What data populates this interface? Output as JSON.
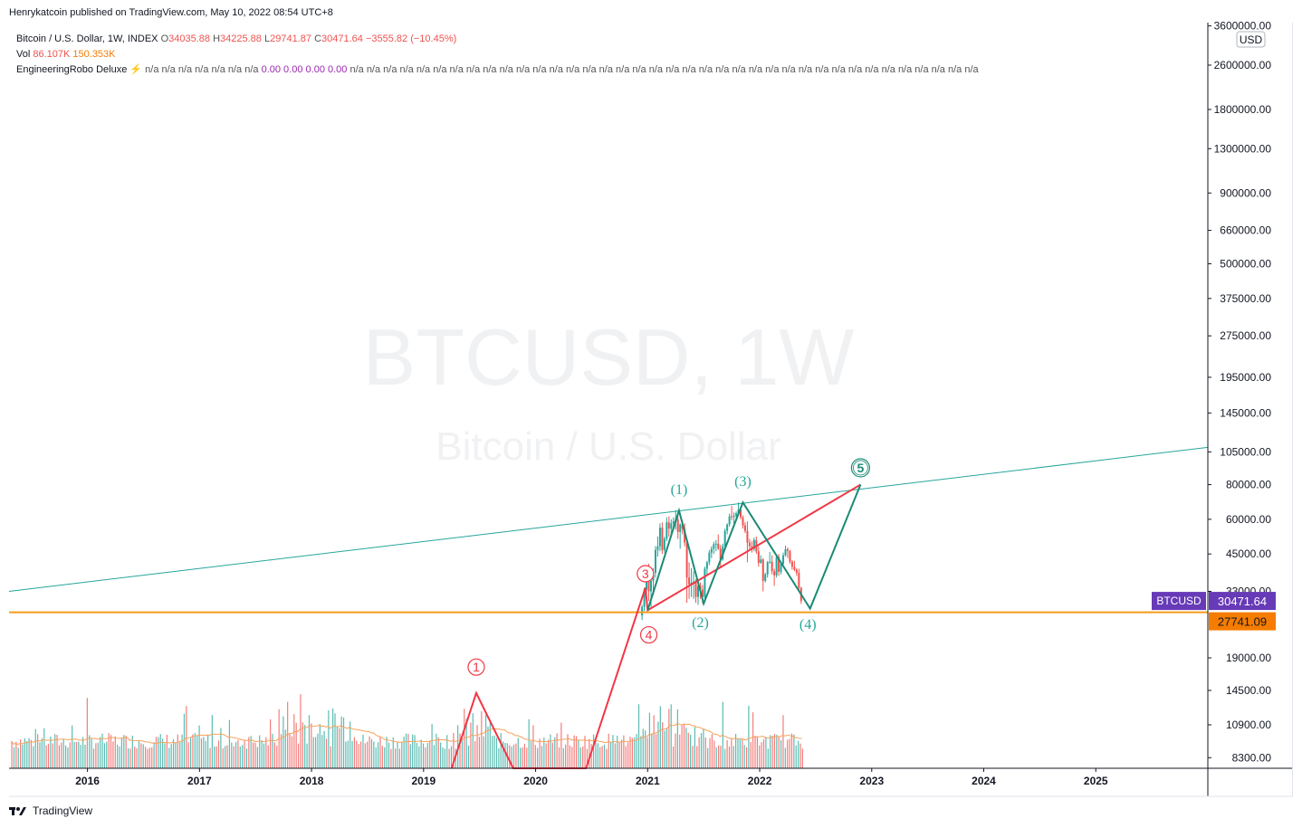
{
  "header": {
    "published": "Henrykatcoin published on TradingView.com, May 10, 2022 08:54 UTC+8"
  },
  "legend": {
    "symbol_line": "Bitcoin / U.S. Dollar, 1W, INDEX",
    "open_label": "O",
    "open": "34035.88",
    "high_label": "H",
    "high": "34225.88",
    "low_label": "L",
    "low": "29741.87",
    "close_label": "C",
    "close": "30471.64",
    "change": "−3555.82 (−10.45%)",
    "vol_label": "Vol",
    "vol_value": "86.107K",
    "vol_ma": "150.353K",
    "indicator_name": "EngineeringRobo Deluxe",
    "indicator_values": "n/a  n/a  n/a  n/a  n/a  n/a  n/a",
    "indicator_zeros": "0.00  0.00  0.00  0.00",
    "indicator_values2": "n/a  n/a  n/a  n/a  n/a  n/a  n/a  n/a  n/a  n/a  n/a  n/a  n/a  n/a  n/a  n/a  n/a  n/a  n/a  n/a  n/a  n/a  n/a  n/a  n/a  n/a  n/a  n/a  n/a  n/a  n/a  n/a  n/a  n/a  n/a  n/a  n/a  n/a"
  },
  "watermark": {
    "line1": "BTCUSD, 1W",
    "line2": "Bitcoin / U.S. Dollar"
  },
  "currency_button": "USD",
  "footer": {
    "brand": "TradingView"
  },
  "colors": {
    "up": "#26a69a",
    "down": "#ef5350",
    "trendline": "#26a69a",
    "support": "#f59c1a",
    "wave_red": "#f23645",
    "wave_green": "#1b8a74",
    "symbol_badge": "#673ab7",
    "price_badge_support": "#f57c00"
  },
  "chart_data": {
    "type": "candlestick",
    "title": "Bitcoin / U.S. Dollar, 1W, INDEX",
    "y_scale": "log",
    "ylim": [
      7600,
      3700000
    ],
    "xlim": [
      2015.3,
      2026.0
    ],
    "x_ticks": [
      {
        "x": 2016,
        "label": "2016"
      },
      {
        "x": 2017,
        "label": "2017"
      },
      {
        "x": 2018,
        "label": "2018"
      },
      {
        "x": 2019,
        "label": "2019"
      },
      {
        "x": 2020,
        "label": "2020"
      },
      {
        "x": 2021,
        "label": "2021"
      },
      {
        "x": 2022,
        "label": "2022"
      },
      {
        "x": 2023,
        "label": "2023"
      },
      {
        "x": 2024,
        "label": "2024"
      },
      {
        "x": 2025,
        "label": "2025"
      }
    ],
    "y_ticks": [
      {
        "v": 3600000,
        "label": "3600000.00"
      },
      {
        "v": 2600000,
        "label": "2600000.00"
      },
      {
        "v": 1800000,
        "label": "1800000.00"
      },
      {
        "v": 1300000,
        "label": "1300000.00"
      },
      {
        "v": 900000,
        "label": "900000.00"
      },
      {
        "v": 660000,
        "label": "660000.00"
      },
      {
        "v": 500000,
        "label": "500000.00"
      },
      {
        "v": 375000,
        "label": "375000.00"
      },
      {
        "v": 275000,
        "label": "275000.00"
      },
      {
        "v": 195000,
        "label": "195000.00"
      },
      {
        "v": 145000,
        "label": "145000.00"
      },
      {
        "v": 105000,
        "label": "105000.00"
      },
      {
        "v": 80000,
        "label": "80000.00"
      },
      {
        "v": 60000,
        "label": "60000.00"
      },
      {
        "v": 45000,
        "label": "45000.00"
      },
      {
        "v": 33000,
        "label": "33000.00"
      },
      {
        "v": 19000,
        "label": "19000.00"
      },
      {
        "v": 14500,
        "label": "14500.00"
      },
      {
        "v": 10900,
        "label": "10900.00"
      },
      {
        "v": 8300,
        "label": "8300.00"
      }
    ],
    "price_labels": [
      {
        "name": "BTCUSD",
        "value": 30471.64,
        "label": "30471.64"
      },
      {
        "name": "support",
        "value": 27741.09,
        "label": "27741.09"
      }
    ],
    "support_level": 27741.09,
    "trendline": {
      "x": [
        2015.3,
        2026.0
      ],
      "y": [
        33000,
        109000
      ]
    },
    "red_wave_path": {
      "x": [
        2019.25,
        2019.47,
        2019.8,
        2020.45,
        2020.98,
        2021.0,
        2022.9
      ],
      "y": [
        7200,
        14200,
        7200,
        7200,
        34000,
        28200,
        80000
      ]
    },
    "green_wave_path": {
      "x": [
        2021.0,
        2021.28,
        2021.5,
        2021.85,
        2022.45,
        2022.9
      ],
      "y": [
        28200,
        64500,
        29800,
        69000,
        28600,
        80000
      ]
    },
    "wave_labels": [
      {
        "text": "1",
        "style": "red-circle",
        "x": 2019.47,
        "y": 17600
      },
      {
        "text": "3",
        "style": "red-circle",
        "x": 2020.98,
        "y": 38200
      },
      {
        "text": "4",
        "style": "red-circle",
        "x": 2021.01,
        "y": 23000
      },
      {
        "text": "5",
        "style": "green-circle",
        "x": 2022.9,
        "y": 92000
      },
      {
        "text": "(1)",
        "style": "green-paren",
        "x": 2021.28,
        "y": 74000
      },
      {
        "text": "(2)",
        "style": "green-paren",
        "x": 2021.47,
        "y": 24500
      },
      {
        "text": "(3)",
        "style": "green-paren",
        "x": 2021.85,
        "y": 79000
      },
      {
        "text": "(4)",
        "style": "green-paren",
        "x": 2022.43,
        "y": 24200
      }
    ],
    "candles": [
      {
        "x": 2020.95,
        "o": 27000,
        "h": 29500,
        "l": 26000,
        "c": 29000
      },
      {
        "x": 2020.97,
        "o": 29000,
        "h": 34000,
        "l": 28000,
        "c": 33500
      },
      {
        "x": 2020.99,
        "o": 33500,
        "h": 41000,
        "l": 30000,
        "c": 39000
      },
      {
        "x": 2021.01,
        "o": 39000,
        "h": 41500,
        "l": 30500,
        "c": 33000
      },
      {
        "x": 2021.03,
        "o": 33000,
        "h": 38000,
        "l": 29000,
        "c": 36000
      },
      {
        "x": 2021.05,
        "o": 36000,
        "h": 40000,
        "l": 32000,
        "c": 38500
      },
      {
        "x": 2021.07,
        "o": 38500,
        "h": 48000,
        "l": 37000,
        "c": 46500
      },
      {
        "x": 2021.09,
        "o": 46500,
        "h": 52000,
        "l": 44000,
        "c": 48000
      },
      {
        "x": 2021.11,
        "o": 48000,
        "h": 58000,
        "l": 46000,
        "c": 56000
      },
      {
        "x": 2021.13,
        "o": 56000,
        "h": 58500,
        "l": 45000,
        "c": 46500
      },
      {
        "x": 2021.15,
        "o": 46500,
        "h": 52000,
        "l": 45500,
        "c": 51000
      },
      {
        "x": 2021.17,
        "o": 51000,
        "h": 61000,
        "l": 50000,
        "c": 58500
      },
      {
        "x": 2021.19,
        "o": 58500,
        "h": 61500,
        "l": 52000,
        "c": 55500
      },
      {
        "x": 2021.21,
        "o": 55500,
        "h": 60000,
        "l": 53000,
        "c": 58000
      },
      {
        "x": 2021.23,
        "o": 58000,
        "h": 61000,
        "l": 56000,
        "c": 59000
      },
      {
        "x": 2021.25,
        "o": 59000,
        "h": 64800,
        "l": 55000,
        "c": 60000
      },
      {
        "x": 2021.27,
        "o": 60000,
        "h": 64000,
        "l": 51000,
        "c": 54000
      },
      {
        "x": 2021.29,
        "o": 54000,
        "h": 58000,
        "l": 47000,
        "c": 57500
      },
      {
        "x": 2021.31,
        "o": 57500,
        "h": 59500,
        "l": 53000,
        "c": 55500
      },
      {
        "x": 2021.33,
        "o": 55500,
        "h": 58000,
        "l": 48000,
        "c": 49500
      },
      {
        "x": 2021.35,
        "o": 49500,
        "h": 51000,
        "l": 30000,
        "c": 37000
      },
      {
        "x": 2021.37,
        "o": 37000,
        "h": 42000,
        "l": 31000,
        "c": 35000
      },
      {
        "x": 2021.39,
        "o": 35000,
        "h": 40000,
        "l": 31500,
        "c": 35500
      },
      {
        "x": 2021.41,
        "o": 35500,
        "h": 39000,
        "l": 31000,
        "c": 35800
      },
      {
        "x": 2021.43,
        "o": 35800,
        "h": 36500,
        "l": 30000,
        "c": 31500
      },
      {
        "x": 2021.45,
        "o": 31500,
        "h": 35500,
        "l": 29500,
        "c": 34500
      },
      {
        "x": 2021.47,
        "o": 34500,
        "h": 35500,
        "l": 31000,
        "c": 33500
      },
      {
        "x": 2021.49,
        "o": 33500,
        "h": 34800,
        "l": 29800,
        "c": 31500
      },
      {
        "x": 2021.51,
        "o": 31500,
        "h": 40500,
        "l": 31000,
        "c": 39800
      },
      {
        "x": 2021.53,
        "o": 39800,
        "h": 42500,
        "l": 37500,
        "c": 42000
      },
      {
        "x": 2021.55,
        "o": 42000,
        "h": 46500,
        "l": 41000,
        "c": 45500
      },
      {
        "x": 2021.57,
        "o": 45500,
        "h": 48000,
        "l": 43500,
        "c": 47000
      },
      {
        "x": 2021.59,
        "o": 47000,
        "h": 49800,
        "l": 45000,
        "c": 48800
      },
      {
        "x": 2021.61,
        "o": 48800,
        "h": 50500,
        "l": 46000,
        "c": 49000
      },
      {
        "x": 2021.63,
        "o": 49000,
        "h": 52900,
        "l": 46500,
        "c": 47000
      },
      {
        "x": 2021.65,
        "o": 47000,
        "h": 48500,
        "l": 40000,
        "c": 43000
      },
      {
        "x": 2021.67,
        "o": 43000,
        "h": 49000,
        "l": 42500,
        "c": 48000
      },
      {
        "x": 2021.69,
        "o": 48000,
        "h": 55500,
        "l": 47500,
        "c": 54500
      },
      {
        "x": 2021.71,
        "o": 54500,
        "h": 58000,
        "l": 53000,
        "c": 57500
      },
      {
        "x": 2021.73,
        "o": 57500,
        "h": 62900,
        "l": 56500,
        "c": 61500
      },
      {
        "x": 2021.75,
        "o": 61500,
        "h": 67000,
        "l": 59500,
        "c": 61200
      },
      {
        "x": 2021.77,
        "o": 61200,
        "h": 63500,
        "l": 58000,
        "c": 61800
      },
      {
        "x": 2021.79,
        "o": 61800,
        "h": 64000,
        "l": 60000,
        "c": 63000
      },
      {
        "x": 2021.81,
        "o": 63000,
        "h": 69000,
        "l": 62000,
        "c": 65000
      },
      {
        "x": 2021.83,
        "o": 65000,
        "h": 66000,
        "l": 60000,
        "c": 61000
      },
      {
        "x": 2021.85,
        "o": 61000,
        "h": 62000,
        "l": 55500,
        "c": 57000
      },
      {
        "x": 2021.87,
        "o": 57000,
        "h": 58500,
        "l": 53500,
        "c": 54500
      },
      {
        "x": 2021.89,
        "o": 54500,
        "h": 59000,
        "l": 42000,
        "c": 49500
      },
      {
        "x": 2021.91,
        "o": 49500,
        "h": 51000,
        "l": 46500,
        "c": 48000
      },
      {
        "x": 2021.93,
        "o": 48000,
        "h": 50000,
        "l": 45500,
        "c": 47000
      },
      {
        "x": 2021.95,
        "o": 47000,
        "h": 51500,
        "l": 46000,
        "c": 50500
      },
      {
        "x": 2021.97,
        "o": 50500,
        "h": 52000,
        "l": 45000,
        "c": 46000
      },
      {
        "x": 2021.99,
        "o": 46000,
        "h": 48000,
        "l": 40500,
        "c": 41800
      },
      {
        "x": 2022.01,
        "o": 41800,
        "h": 44500,
        "l": 41500,
        "c": 43000
      },
      {
        "x": 2022.03,
        "o": 43000,
        "h": 43500,
        "l": 33000,
        "c": 36000
      },
      {
        "x": 2022.05,
        "o": 36000,
        "h": 38500,
        "l": 35500,
        "c": 38000
      },
      {
        "x": 2022.07,
        "o": 38000,
        "h": 42500,
        "l": 37000,
        "c": 42000
      },
      {
        "x": 2022.09,
        "o": 42000,
        "h": 45800,
        "l": 41500,
        "c": 42200
      },
      {
        "x": 2022.11,
        "o": 42200,
        "h": 44500,
        "l": 38000,
        "c": 39000
      },
      {
        "x": 2022.13,
        "o": 39000,
        "h": 39800,
        "l": 34500,
        "c": 37700
      },
      {
        "x": 2022.15,
        "o": 37700,
        "h": 44500,
        "l": 37000,
        "c": 43800
      },
      {
        "x": 2022.17,
        "o": 43800,
        "h": 45000,
        "l": 37500,
        "c": 38800
      },
      {
        "x": 2022.19,
        "o": 38800,
        "h": 41800,
        "l": 38000,
        "c": 41500
      },
      {
        "x": 2022.21,
        "o": 41500,
        "h": 45500,
        "l": 41000,
        "c": 44500
      },
      {
        "x": 2022.23,
        "o": 44500,
        "h": 48200,
        "l": 44000,
        "c": 46800
      },
      {
        "x": 2022.25,
        "o": 46800,
        "h": 47500,
        "l": 43500,
        "c": 46200
      },
      {
        "x": 2022.27,
        "o": 46200,
        "h": 46500,
        "l": 41500,
        "c": 42200
      },
      {
        "x": 2022.29,
        "o": 42200,
        "h": 42800,
        "l": 39500,
        "c": 40500
      },
      {
        "x": 2022.31,
        "o": 40500,
        "h": 42500,
        "l": 39000,
        "c": 39500
      },
      {
        "x": 2022.33,
        "o": 39500,
        "h": 40000,
        "l": 37500,
        "c": 38500
      },
      {
        "x": 2022.35,
        "o": 38500,
        "h": 39800,
        "l": 33500,
        "c": 34000
      },
      {
        "x": 2022.37,
        "o": 34000,
        "h": 34225.88,
        "l": 29741.87,
        "c": 30471.64
      }
    ],
    "volume_ylim": [
      0,
      270000
    ],
    "volume_note": "weekly volume histogram (values estimated, no axis shown)",
    "volume_ma_note": "orange moving-average line over volume"
  }
}
